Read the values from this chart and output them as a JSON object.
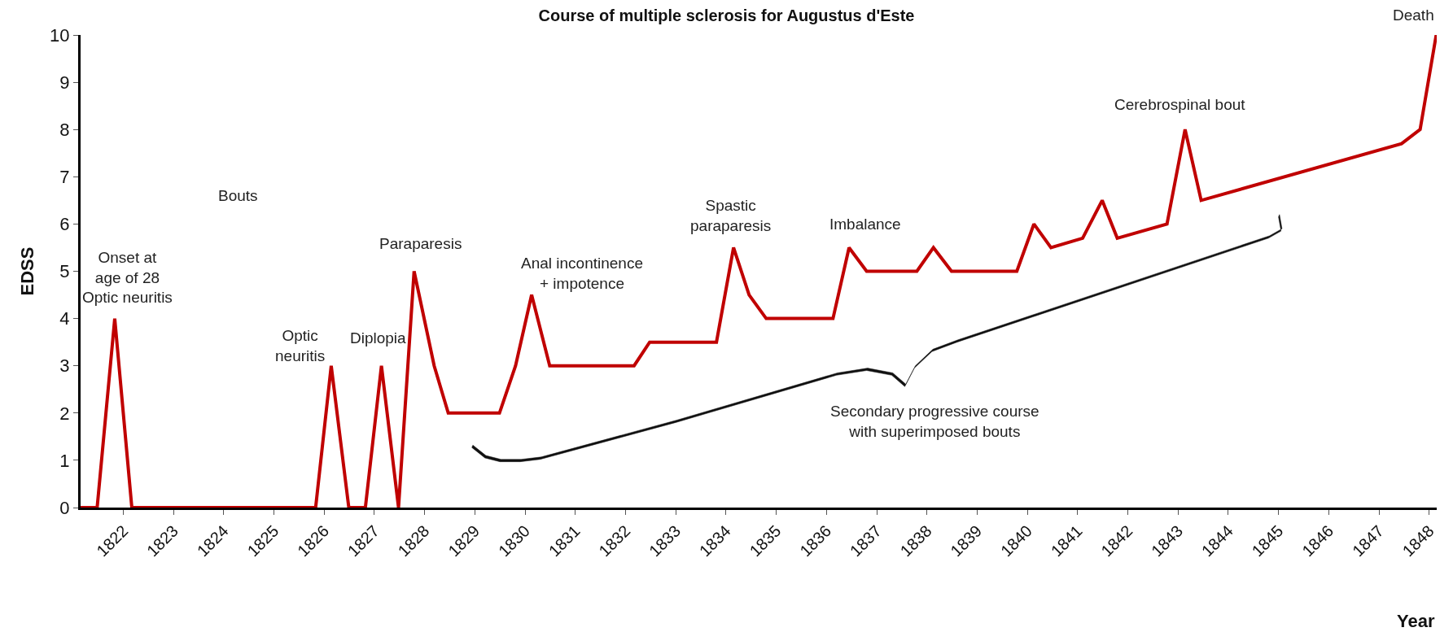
{
  "chart_data": {
    "type": "line",
    "title": "Course of multiple sclerosis for Augustus d'Este",
    "xlabel": "Year",
    "ylabel": "EDSS",
    "x": [
      1821.15,
      1821.48,
      1821.83,
      1822.17,
      1825.83,
      1826.14,
      1826.49,
      1826.82,
      1827.14,
      1827.48,
      1827.79,
      1828.19,
      1828.47,
      1829.49,
      1829.81,
      1830.13,
      1830.49,
      1832.17,
      1832.48,
      1833.81,
      1834.15,
      1834.46,
      1834.8,
      1836.13,
      1836.45,
      1836.8,
      1837.8,
      1838.13,
      1838.49,
      1839.79,
      1840.13,
      1840.47,
      1841.1,
      1841.49,
      1841.79,
      1842.78,
      1843.14,
      1843.46,
      1847.45,
      1847.82,
      1848.14
    ],
    "series": [
      {
        "color": "#c00000",
        "values": [
          0,
          0,
          4,
          0,
          0,
          3,
          0,
          0,
          3,
          0,
          5,
          3,
          2,
          2,
          3,
          4.5,
          3,
          3,
          3.5,
          3.5,
          5.5,
          4.5,
          4,
          4,
          5.5,
          5,
          5,
          5.5,
          5,
          5,
          6,
          5.5,
          5.7,
          6.5,
          5.7,
          6,
          8,
          6.5,
          7.7,
          8,
          10
        ]
      }
    ],
    "xlim": [
      1821.15,
      1848.15
    ],
    "xticks": [
      1822,
      1823,
      1824,
      1825,
      1826,
      1827,
      1828,
      1829,
      1830,
      1831,
      1832,
      1833,
      1834,
      1835,
      1836,
      1837,
      1838,
      1839,
      1840,
      1841,
      1842,
      1843,
      1844,
      1845,
      1846,
      1847,
      1848
    ],
    "ylim": [
      0,
      10
    ],
    "yticks": [
      0,
      1,
      2,
      3,
      4,
      5,
      6,
      7,
      8,
      9,
      10
    ],
    "marker": "none",
    "line_style": "solid",
    "annotations": [
      {
        "text": "Onset at\nage of 28\nOptic neuritis",
        "x": 1821.83,
        "y": 4
      },
      "Bouts",
      {
        "text": "Optic\nneuritis",
        "x": 1826.14,
        "y": 3
      },
      {
        "text": "Diplopia",
        "x": 1827.14,
        "y": 3
      },
      {
        "text": "Paraparesis",
        "x": 1827.79,
        "y": 5
      },
      {
        "text": "Anal incontinence\n+ impotence",
        "x": 1830.13,
        "y": 4.5
      },
      {
        "text": "Spastic\nparaparesis",
        "x": 1834.15,
        "y": 5.5
      },
      {
        "text": "Imbalance",
        "x": 1836.45,
        "y": 5.5
      },
      {
        "text": "Cerebrospinal bout",
        "x": 1843.14,
        "y": 8
      },
      {
        "text": "Death",
        "x": 1848.14,
        "y": 10
      },
      "Secondary progressive course\nwith superimposed bouts"
    ]
  }
}
